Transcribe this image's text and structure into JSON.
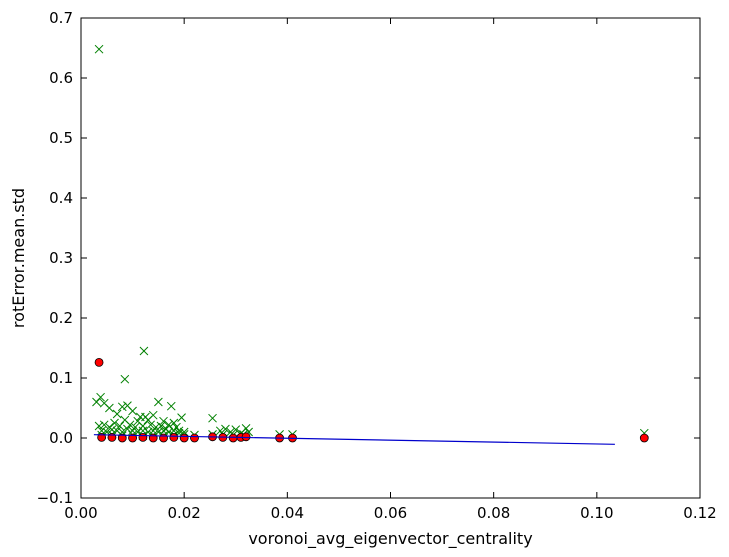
{
  "chart_data": {
    "type": "scatter",
    "xlabel": "voronoi_avg_eigenvector_centrality",
    "ylabel": "rotError.mean.std",
    "xlim": [
      0.0,
      0.12
    ],
    "ylim": [
      -0.1,
      0.7
    ],
    "xticks": [
      0.0,
      0.02,
      0.04,
      0.06,
      0.08,
      0.1,
      0.12
    ],
    "xtick_labels": [
      "0.00",
      "0.02",
      "0.04",
      "0.06",
      "0.08",
      "0.10",
      "0.12"
    ],
    "yticks": [
      -0.1,
      0.0,
      0.1,
      0.2,
      0.3,
      0.4,
      0.5,
      0.6,
      0.7
    ],
    "ytick_labels": [
      "−0.1",
      "0.0",
      "0.1",
      "0.2",
      "0.3",
      "0.4",
      "0.5",
      "0.6",
      "0.7"
    ],
    "grid": false,
    "colors": {
      "crosses": "#008000",
      "circles": "#ff0000",
      "line": "#0000cc"
    },
    "series": [
      {
        "marker": "x",
        "points": [
          [
            0.0035,
            0.648
          ],
          [
            0.0122,
            0.145
          ],
          [
            0.0085,
            0.098
          ],
          [
            0.0038,
            0.068
          ],
          [
            0.003,
            0.06
          ],
          [
            0.0045,
            0.058
          ],
          [
            0.0055,
            0.05
          ],
          [
            0.008,
            0.052
          ],
          [
            0.009,
            0.054
          ],
          [
            0.015,
            0.06
          ],
          [
            0.0175,
            0.053
          ],
          [
            0.0255,
            0.033
          ],
          [
            0.0195,
            0.034
          ],
          [
            0.007,
            0.04
          ],
          [
            0.01,
            0.045
          ],
          [
            0.0115,
            0.035
          ],
          [
            0.013,
            0.03
          ],
          [
            0.014,
            0.038
          ],
          [
            0.016,
            0.028
          ],
          [
            0.018,
            0.025
          ],
          [
            0.0035,
            0.02
          ],
          [
            0.0045,
            0.022
          ],
          [
            0.0055,
            0.018
          ],
          [
            0.0065,
            0.025
          ],
          [
            0.0075,
            0.02
          ],
          [
            0.0085,
            0.03
          ],
          [
            0.0095,
            0.022
          ],
          [
            0.0105,
            0.018
          ],
          [
            0.011,
            0.028
          ],
          [
            0.012,
            0.02
          ],
          [
            0.0125,
            0.035
          ],
          [
            0.0135,
            0.022
          ],
          [
            0.0145,
            0.018
          ],
          [
            0.0155,
            0.02
          ],
          [
            0.0165,
            0.015
          ],
          [
            0.017,
            0.022
          ],
          [
            0.0185,
            0.018
          ],
          [
            0.019,
            0.012
          ],
          [
            0.02,
            0.01
          ],
          [
            0.004,
            0.012
          ],
          [
            0.005,
            0.01
          ],
          [
            0.006,
            0.014
          ],
          [
            0.007,
            0.012
          ],
          [
            0.008,
            0.01
          ],
          [
            0.009,
            0.015
          ],
          [
            0.01,
            0.012
          ],
          [
            0.011,
            0.01
          ],
          [
            0.012,
            0.012
          ],
          [
            0.013,
            0.01
          ],
          [
            0.014,
            0.012
          ],
          [
            0.015,
            0.01
          ],
          [
            0.016,
            0.012
          ],
          [
            0.017,
            0.01
          ],
          [
            0.018,
            0.012
          ],
          [
            0.019,
            0.008
          ],
          [
            0.02,
            0.006
          ],
          [
            0.004,
            0.005
          ],
          [
            0.006,
            0.006
          ],
          [
            0.008,
            0.004
          ],
          [
            0.01,
            0.005
          ],
          [
            0.012,
            0.004
          ],
          [
            0.014,
            0.005
          ],
          [
            0.016,
            0.004
          ],
          [
            0.018,
            0.005
          ],
          [
            0.022,
            0.005
          ],
          [
            0.0255,
            0.006
          ],
          [
            0.027,
            0.012
          ],
          [
            0.028,
            0.015
          ],
          [
            0.029,
            0.01
          ],
          [
            0.03,
            0.014
          ],
          [
            0.031,
            0.008
          ],
          [
            0.032,
            0.016
          ],
          [
            0.0275,
            0.006
          ],
          [
            0.0295,
            0.005
          ],
          [
            0.0315,
            0.006
          ],
          [
            0.0325,
            0.01
          ],
          [
            0.0385,
            0.006
          ],
          [
            0.041,
            0.006
          ],
          [
            0.1092,
            0.008
          ]
        ]
      },
      {
        "marker": "o",
        "points": [
          [
            0.0035,
            0.126
          ],
          [
            0.004,
            0.001
          ],
          [
            0.006,
            0.001
          ],
          [
            0.008,
            0.0
          ],
          [
            0.01,
            0.0
          ],
          [
            0.012,
            0.001
          ],
          [
            0.014,
            0.0
          ],
          [
            0.016,
            0.0
          ],
          [
            0.018,
            0.001
          ],
          [
            0.02,
            0.0
          ],
          [
            0.022,
            0.0
          ],
          [
            0.0255,
            0.002
          ],
          [
            0.0275,
            0.001
          ],
          [
            0.0295,
            0.0
          ],
          [
            0.031,
            0.001
          ],
          [
            0.032,
            0.002
          ],
          [
            0.0385,
            0.0
          ],
          [
            0.041,
            0.0
          ],
          [
            0.1092,
            0.0
          ]
        ]
      },
      {
        "marker": "line",
        "points": [
          [
            0.0025,
            0.0055
          ],
          [
            0.1035,
            -0.0105
          ]
        ]
      }
    ]
  }
}
